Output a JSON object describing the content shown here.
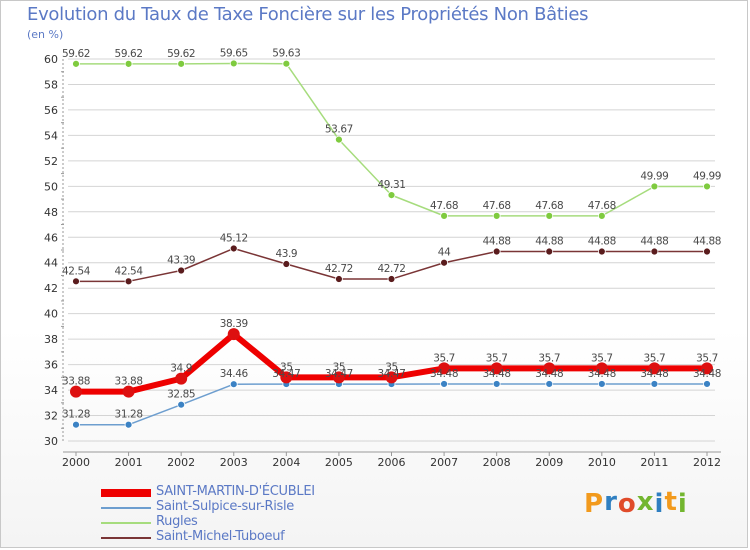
{
  "title": "Evolution du Taux de Taxe Foncière sur les Propriétés Non Bâties",
  "unit": "(en %)",
  "logo": {
    "letters": [
      "P",
      "r",
      "o",
      "x",
      "i",
      "t",
      "i"
    ],
    "colors": [
      "#f29a1d",
      "#2f7fc1",
      "#e04b2a",
      "#73b62f",
      "#2f7fc1",
      "#f29a1d",
      "#73b62f"
    ]
  },
  "chart_data": {
    "type": "line",
    "title": "Evolution du Taux de Taxe Foncière sur les Propriétés Non Bâties",
    "ylabel": "(en %)",
    "ylim": [
      30,
      60
    ],
    "yticks": [
      "30",
      "32",
      "34",
      "36",
      "38",
      "40",
      "42",
      "44",
      "46",
      "48",
      "50",
      "52",
      "54",
      "56",
      "58",
      "60"
    ],
    "categories": [
      "2000",
      "2001",
      "2002",
      "2003",
      "2004",
      "2005",
      "2006",
      "2007",
      "2008",
      "2009",
      "2010",
      "2011",
      "2012"
    ],
    "series": [
      {
        "name": "SAINT-MARTIN-D'ÉCUBLEI",
        "color": "#ee0000",
        "marker": "#dd1010",
        "width": 6,
        "msize": 6,
        "values": [
          33.88,
          33.88,
          34.9,
          38.39,
          35,
          35,
          35,
          35.7,
          35.7,
          35.7,
          35.7,
          35.7,
          35.7
        ],
        "labels": [
          "33.88",
          "33.88",
          "34.9",
          "38.39",
          "35",
          "35",
          "35",
          "35.7",
          "35.7",
          "35.7",
          "35.7",
          "35.7",
          "35.7"
        ]
      },
      {
        "name": "Saint-Sulpice-sur-Risle",
        "color": "#6d9ecf",
        "marker": "#3b82c4",
        "width": 1.5,
        "msize": 3.5,
        "values": [
          31.28,
          31.28,
          32.85,
          34.46,
          34.47,
          34.47,
          34.47,
          34.48,
          34.48,
          34.48,
          34.48,
          34.48,
          34.48
        ],
        "labels": [
          "31.28",
          "31.28",
          "32.85",
          "34.46",
          "34.47",
          "34.47",
          "34.47",
          "34.48",
          "34.48",
          "34.48",
          "34.48",
          "34.48",
          "34.48"
        ]
      },
      {
        "name": "Rugles",
        "color": "#a6dc7d",
        "marker": "#7fcb3f",
        "width": 1.5,
        "msize": 3.5,
        "values": [
          59.62,
          59.62,
          59.62,
          59.65,
          59.63,
          53.67,
          49.31,
          47.68,
          47.68,
          47.68,
          47.68,
          49.99,
          49.99
        ],
        "labels": [
          "59.62",
          "59.62",
          "59.62",
          "59.65",
          "59.63",
          "53.67",
          "49.31",
          "47.68",
          "47.68",
          "47.68",
          "47.68",
          "49.99",
          "49.99"
        ]
      },
      {
        "name": "Saint-Michel-Tuboeuf",
        "color": "#7a3536",
        "marker": "#5a1c1d",
        "width": 1.5,
        "msize": 3.5,
        "values": [
          42.54,
          42.54,
          43.39,
          45.12,
          43.9,
          42.72,
          42.72,
          44,
          44.88,
          44.88,
          44.88,
          44.88,
          44.88
        ],
        "labels": [
          "42.54",
          "42.54",
          "43.39",
          "45.12",
          "43.9",
          "42.72",
          "42.72",
          "44",
          "44.88",
          "44.88",
          "44.88",
          "44.88",
          "44.88"
        ]
      }
    ]
  }
}
